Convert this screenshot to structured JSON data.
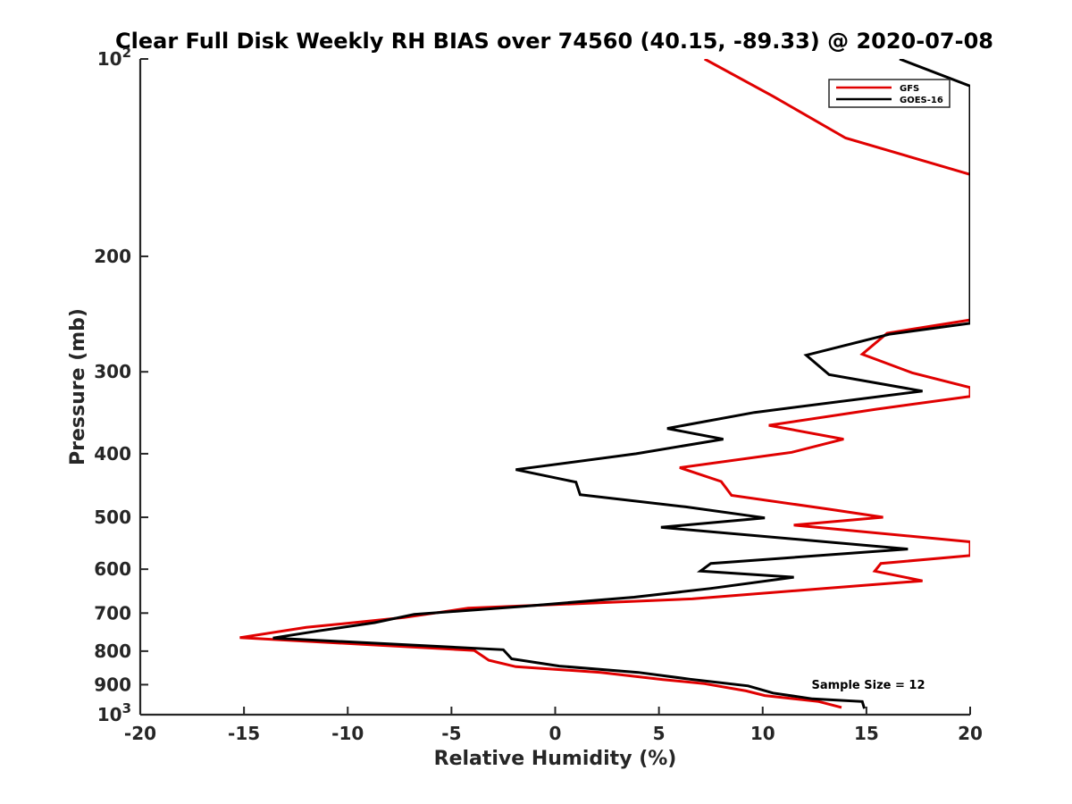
{
  "chart_data": {
    "type": "line",
    "title": "Clear Full Disk Weekly RH BIAS over 74560 (40.15, -89.33) @ 2020-07-08",
    "xlabel": "Relative Humidity (%)",
    "ylabel": "Pressure (mb)",
    "xlim": [
      -20,
      20
    ],
    "ylim": [
      100,
      1000
    ],
    "y_scale": "log",
    "y_reversed": true,
    "grid": false,
    "legend_position": "top-right",
    "x_ticks": [
      {
        "value": -20,
        "label": "-20"
      },
      {
        "value": -15,
        "label": "-15"
      },
      {
        "value": -10,
        "label": "-10"
      },
      {
        "value": -5,
        "label": "-5"
      },
      {
        "value": 0,
        "label": "0"
      },
      {
        "value": 5,
        "label": "5"
      },
      {
        "value": 10,
        "label": "10"
      },
      {
        "value": 15,
        "label": "15"
      },
      {
        "value": 20,
        "label": "20"
      }
    ],
    "y_ticks": [
      {
        "value": 100,
        "base": "10",
        "exp": "2"
      },
      {
        "value": 200,
        "base": "200",
        "exp": ""
      },
      {
        "value": 300,
        "base": "300",
        "exp": ""
      },
      {
        "value": 400,
        "base": "400",
        "exp": ""
      },
      {
        "value": 500,
        "base": "500",
        "exp": ""
      },
      {
        "value": 600,
        "base": "600",
        "exp": ""
      },
      {
        "value": 700,
        "base": "700",
        "exp": ""
      },
      {
        "value": 800,
        "base": "800",
        "exp": ""
      },
      {
        "value": 900,
        "base": "900",
        "exp": ""
      },
      {
        "value": 1000,
        "base": "10",
        "exp": "3"
      }
    ],
    "annotation": "Sample Size = 12",
    "series": [
      {
        "name": "GFS",
        "color": "#e00000",
        "points": [
          [
            7.2,
            100
          ],
          [
            10.5,
            114
          ],
          [
            14,
            132
          ],
          [
            20,
            150
          ],
          [
            20,
            250
          ],
          [
            16,
            262
          ],
          [
            14.8,
            282
          ],
          [
            17.2,
            301
          ],
          [
            20,
            317
          ],
          [
            20,
            327
          ],
          [
            15.5,
            342
          ],
          [
            10.3,
            362
          ],
          [
            13.9,
            380
          ],
          [
            11.4,
            398
          ],
          [
            6,
            420
          ],
          [
            8,
            441
          ],
          [
            8.5,
            463
          ],
          [
            13.2,
            486
          ],
          [
            15.8,
            500
          ],
          [
            11.5,
            514
          ],
          [
            20,
            545
          ],
          [
            20,
            572
          ],
          [
            15.7,
            588
          ],
          [
            15.4,
            604
          ],
          [
            17.7,
            625
          ],
          [
            13.5,
            640
          ],
          [
            6.6,
            666
          ],
          [
            -4.2,
            688
          ],
          [
            -7.3,
            711
          ],
          [
            -12,
            736
          ],
          [
            -15.2,
            763
          ],
          [
            -3.9,
            798
          ],
          [
            -3.2,
            826
          ],
          [
            -1.9,
            845
          ],
          [
            2.2,
            862
          ],
          [
            5.2,
            884
          ],
          [
            7.2,
            897
          ],
          [
            9.2,
            920
          ],
          [
            10.1,
            935
          ],
          [
            12.7,
            955
          ],
          [
            13.8,
            975
          ]
        ]
      },
      {
        "name": "GOES-16",
        "color": "#000000",
        "points": [
          [
            16.6,
            100
          ],
          [
            20,
            110
          ],
          [
            20,
            253
          ],
          [
            16.1,
            263
          ],
          [
            12.1,
            283
          ],
          [
            13.2,
            303
          ],
          [
            17.7,
            321
          ],
          [
            9.6,
            346
          ],
          [
            5.4,
            366
          ],
          [
            8.1,
            380
          ],
          [
            3.9,
            400
          ],
          [
            -1.9,
            423
          ],
          [
            1.0,
            442
          ],
          [
            1.2,
            462
          ],
          [
            6.3,
            482
          ],
          [
            10.1,
            501
          ],
          [
            5.1,
            518
          ],
          [
            17,
            559
          ],
          [
            7.5,
            588
          ],
          [
            7.0,
            604
          ],
          [
            11.5,
            617
          ],
          [
            7.5,
            642
          ],
          [
            3.8,
            662
          ],
          [
            -1.4,
            683
          ],
          [
            -6.8,
            703
          ],
          [
            -8.7,
            724
          ],
          [
            -11.4,
            745
          ],
          [
            -13.6,
            764
          ],
          [
            -2.5,
            796
          ],
          [
            -2.1,
            822
          ],
          [
            0.2,
            843
          ],
          [
            4,
            862
          ],
          [
            6.5,
            883
          ],
          [
            9.3,
            904
          ],
          [
            10.5,
            927
          ],
          [
            12.4,
            946
          ],
          [
            14.8,
            955
          ],
          [
            14.9,
            979
          ]
        ]
      }
    ]
  }
}
